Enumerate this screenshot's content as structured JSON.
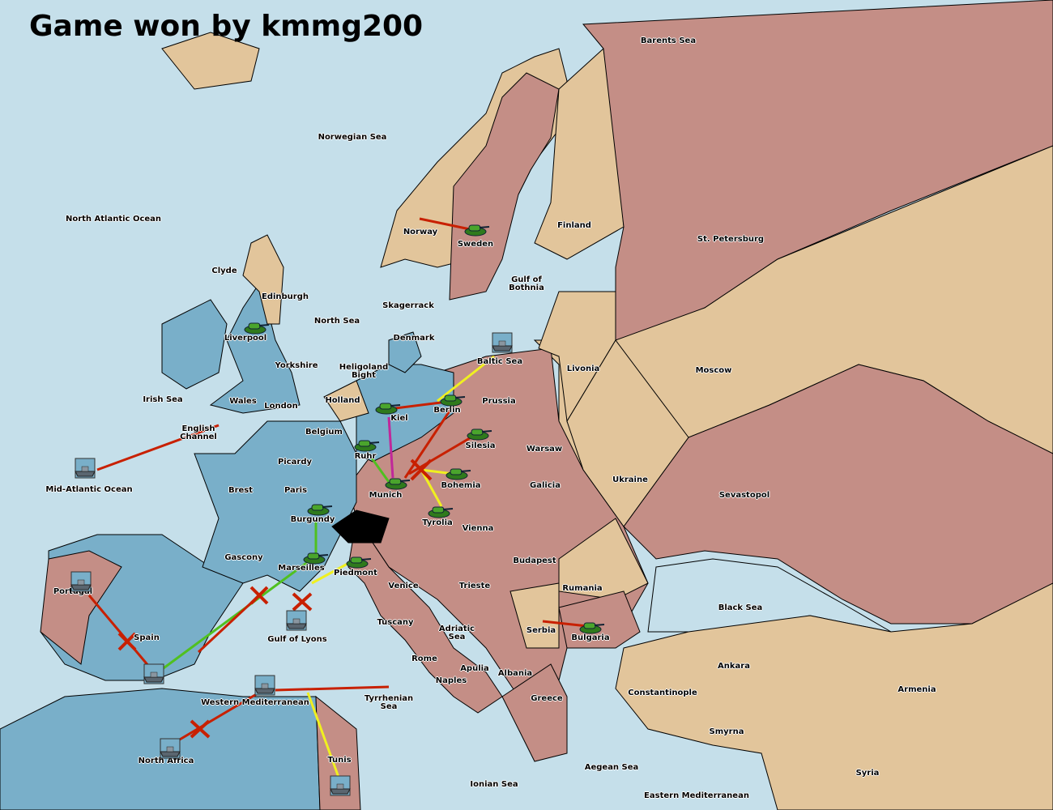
{
  "title": "Game won by kmmg200",
  "colors": {
    "sea": "#c5dfea",
    "blue_power": "#79afc9",
    "pink_power": "#c48e86",
    "neutral_tan": "#e2c59b",
    "impassable": "#000000"
  },
  "provinces": [
    "Barents Sea",
    "Norwegian Sea",
    "North Atlantic Ocean",
    "Norway",
    "Sweden",
    "Finland",
    "St. Petersburg",
    "Clyde",
    "Edinburgh",
    "Gulf of\nBothnia",
    "Skagerrack",
    "North Sea",
    "Liverpool",
    "Denmark",
    "Baltic Sea",
    "Yorkshire",
    "Heligoland\nBight",
    "Livonia",
    "Moscow",
    "Irish Sea",
    "Wales",
    "Holland",
    "Prussia",
    "London",
    "Berlin",
    "Kiel",
    "English\nChannel",
    "Belgium",
    "Silesia",
    "Warsaw",
    "Ruhr",
    "Picardy",
    "Ukraine",
    "Bohemia",
    "Galicia",
    "Mid-Atlantic Ocean",
    "Brest",
    "Paris",
    "Munich",
    "Sevastopol",
    "Burgundy",
    "Tyrolia",
    "Vienna",
    "Gascony",
    "Budapest",
    "Marseilles",
    "Piedmont",
    "Portugal",
    "Venice",
    "Trieste",
    "Rumania",
    "Black Sea",
    "Tuscany",
    "Adriatic\nSea",
    "Serbia",
    "Spain",
    "Bulgaria",
    "Gulf of Lyons",
    "Rome",
    "Apulia",
    "Ankara",
    "Albania",
    "Naples",
    "Armenia",
    "Constantinople",
    "Greece",
    "Tyrrhenian\nSea",
    "Western Mediterranean",
    "Smyrna",
    "North Africa",
    "Tunis",
    "Aegean Sea",
    "Syria",
    "Ionian Sea",
    "Eastern Mediterranean"
  ],
  "units": [
    {
      "type": "army",
      "icon": "tank-icon",
      "province": "Sweden"
    },
    {
      "type": "army",
      "icon": "tank-icon",
      "province": "Liverpool"
    },
    {
      "type": "army",
      "icon": "tank-icon",
      "province": "Kiel"
    },
    {
      "type": "army",
      "icon": "tank-icon",
      "province": "Berlin"
    },
    {
      "type": "army",
      "icon": "tank-icon",
      "province": "Silesia"
    },
    {
      "type": "army",
      "icon": "tank-icon",
      "province": "Ruhr"
    },
    {
      "type": "army",
      "icon": "tank-icon",
      "province": "Munich"
    },
    {
      "type": "army",
      "icon": "tank-icon",
      "province": "Bohemia"
    },
    {
      "type": "army",
      "icon": "tank-icon",
      "province": "Tyrolia"
    },
    {
      "type": "army",
      "icon": "tank-icon",
      "province": "Burgundy"
    },
    {
      "type": "army",
      "icon": "tank-icon",
      "province": "Marseilles"
    },
    {
      "type": "army",
      "icon": "tank-icon",
      "province": "Piedmont"
    },
    {
      "type": "army",
      "icon": "tank-icon",
      "province": "Bulgaria"
    },
    {
      "type": "fleet",
      "icon": "ship-icon",
      "province": "Mid-Atlantic Ocean"
    },
    {
      "type": "fleet",
      "icon": "ship-icon",
      "province": "Baltic Sea"
    },
    {
      "type": "fleet",
      "icon": "ship-icon",
      "province": "Gulf of Lyons"
    },
    {
      "type": "fleet",
      "icon": "ship-icon",
      "province": "Portugal"
    },
    {
      "type": "fleet",
      "icon": "ship-icon",
      "province": "Spain"
    },
    {
      "type": "fleet",
      "icon": "ship-icon",
      "province": "Western Mediterranean"
    },
    {
      "type": "fleet",
      "icon": "ship-icon",
      "province": "North Africa"
    },
    {
      "type": "fleet",
      "icon": "ship-icon",
      "province": "Tunis"
    }
  ]
}
